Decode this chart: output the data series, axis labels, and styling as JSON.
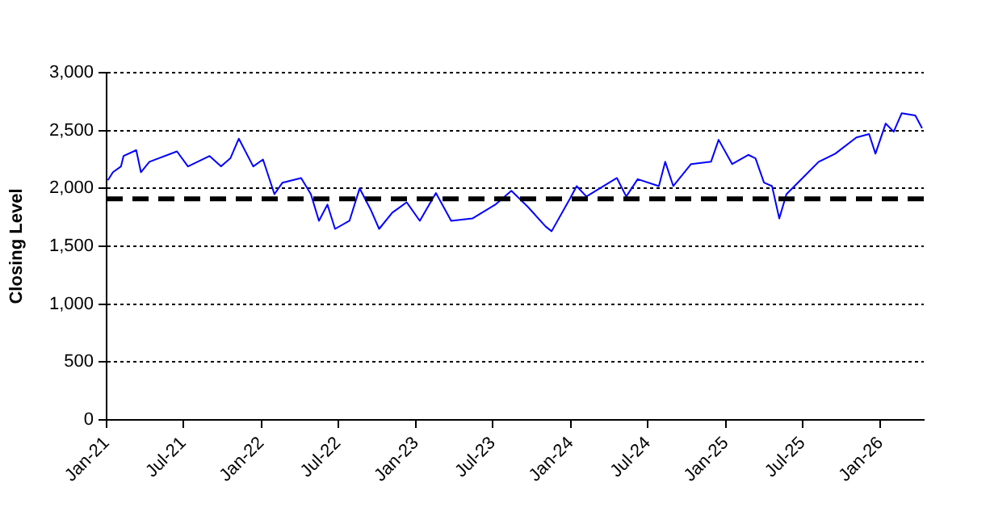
{
  "chart_data": {
    "type": "line",
    "ylabel": "Closing Level",
    "x": [
      "2021-01-04",
      "2021-01-16",
      "2021-02-04",
      "2021-02-10",
      "2021-03-12",
      "2021-03-23",
      "2021-04-12",
      "2021-06-16",
      "2021-07-12",
      "2021-09-01",
      "2021-09-28",
      "2021-10-20",
      "2021-11-09",
      "2021-12-13",
      "2022-01-05",
      "2022-02-01",
      "2022-02-20",
      "2022-04-05",
      "2022-04-28",
      "2022-05-17",
      "2022-06-06",
      "2022-06-24",
      "2022-07-28",
      "2022-08-21",
      "2022-09-17",
      "2022-10-06",
      "2022-11-06",
      "2022-12-10",
      "2023-01-10",
      "2023-02-17",
      "2023-03-25",
      "2023-05-14",
      "2023-07-07",
      "2023-08-14",
      "2023-09-22",
      "2023-11-03",
      "2023-11-17",
      "2023-12-30",
      "2024-01-15",
      "2024-02-07",
      "2024-04-19",
      "2024-05-11",
      "2024-06-07",
      "2024-07-27",
      "2024-08-11",
      "2024-08-30",
      "2024-10-11",
      "2024-11-27",
      "2024-12-15",
      "2025-01-16",
      "2025-02-23",
      "2025-03-12",
      "2025-04-01",
      "2025-04-20",
      "2025-05-07",
      "2025-05-24",
      "2025-07-01",
      "2025-08-08",
      "2025-09-16",
      "2025-11-05",
      "2025-12-05",
      "2025-12-20",
      "2026-01-13",
      "2026-02-01",
      "2026-02-20",
      "2026-03-24",
      "2026-04-09"
    ],
    "series": [
      {
        "color": "#0000ff",
        "values": [
          2070,
          2140,
          2190,
          2280,
          2330,
          2140,
          2230,
          2320,
          2190,
          2280,
          2190,
          2260,
          2430,
          2190,
          2250,
          1950,
          2050,
          2090,
          1950,
          1720,
          1860,
          1650,
          1720,
          2000,
          1810,
          1650,
          1790,
          1880,
          1720,
          1960,
          1720,
          1740,
          1860,
          1980,
          1840,
          1670,
          1630,
          1910,
          2020,
          1930,
          2090,
          1930,
          2080,
          2020,
          2230,
          2020,
          2210,
          2230,
          2420,
          2210,
          2290,
          2260,
          2050,
          2020,
          1740,
          1950,
          2090,
          2230,
          2300,
          2440,
          2470,
          2300,
          2560,
          2490,
          2650,
          2630,
          2520
        ]
      }
    ],
    "xlim": [
      "2021-01-01",
      "2026-04-13"
    ],
    "xticks": [
      {
        "value": "2021-01",
        "label": "Jan-21"
      },
      {
        "value": "2021-07",
        "label": "Jul-21"
      },
      {
        "value": "2022-01",
        "label": "Jan-22"
      },
      {
        "value": "2022-07",
        "label": "Jul-22"
      },
      {
        "value": "2023-01",
        "label": "Jan-23"
      },
      {
        "value": "2023-07",
        "label": "Jul-23"
      },
      {
        "value": "2024-01",
        "label": "Jan-24"
      },
      {
        "value": "2024-07",
        "label": "Jul-24"
      },
      {
        "value": "2025-01",
        "label": "Jan-25"
      },
      {
        "value": "2025-07",
        "label": "Jul-25"
      },
      {
        "value": "2026-01",
        "label": "Jan-26"
      }
    ],
    "ylim": [
      0,
      3000
    ],
    "yticks": [
      {
        "value": 0,
        "label": "0"
      },
      {
        "value": 500,
        "label": "500"
      },
      {
        "value": 1000,
        "label": "1,000"
      },
      {
        "value": 1500,
        "label": "1,500"
      },
      {
        "value": 2000,
        "label": "2,000"
      },
      {
        "value": 2500,
        "label": "2,500"
      },
      {
        "value": 3000,
        "label": "3,000"
      }
    ],
    "grid": "y",
    "legend": false,
    "marker": "none",
    "line_style": "solid",
    "ref_lines": [
      {
        "axis": "y",
        "value": 1910,
        "color": "#000000",
        "line_style": "dashed"
      }
    ]
  }
}
